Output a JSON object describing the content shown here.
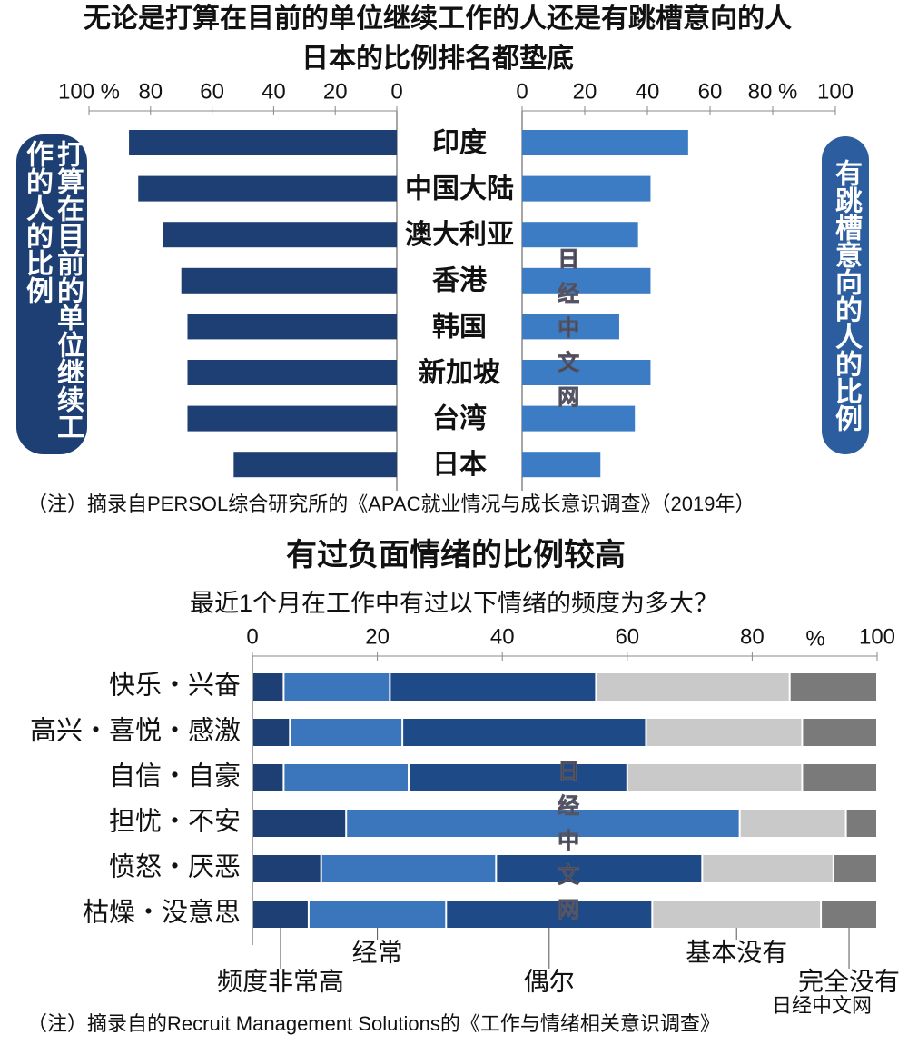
{
  "chart_data": [
    {
      "type": "butterfly",
      "title": "无论是打算在目前的单位继续工作的人还是有跳槽意向的人",
      "subtitle": "日本的比例排名都垫底",
      "categories": [
        "印度",
        "中国大陆",
        "澳大利亚",
        "香港",
        "韩国",
        "新加坡",
        "台湾",
        "日本"
      ],
      "series": [
        {
          "name": "打算在目前的单位继续工作的人的比例",
          "color": "#1e3f73",
          "values": [
            87,
            84,
            76,
            70,
            68,
            68,
            68,
            53
          ]
        },
        {
          "name": "有跳槽意向的人的比例",
          "color": "#3b7cc4",
          "values": [
            53,
            41,
            37,
            41,
            31,
            41,
            36,
            25
          ]
        }
      ],
      "xlim": [
        0,
        100
      ],
      "xticks": [
        {
          "value": 100,
          "label": "100 %"
        },
        80,
        60,
        40,
        20,
        0
      ],
      "x2ticks": [
        0,
        20,
        40,
        60,
        {
          "value": 80,
          "label": "80 %"
        },
        100
      ],
      "note": "（注）摘录自PERSOL综合研究所的《APAC就业情况与成长意识调查》（2019年）"
    },
    {
      "type": "stacked_bar",
      "title": "有过负面情绪的比例较高",
      "subtitle": "最近1个月在工作中有过以下情绪的频度为多大？",
      "unit": "%",
      "categories": [
        "快乐・兴奋",
        "高兴・喜悦・感激",
        "自信・自豪",
        "担忧・不安",
        "愤怒・厌恶",
        "枯燥・没意思"
      ],
      "series": [
        {
          "name": "频度非常高",
          "color": "#1e3f73",
          "values": [
            5,
            6,
            5,
            15,
            11,
            9
          ]
        },
        {
          "name": "经常",
          "color": "#3b76bd",
          "values": [
            17,
            18,
            20,
            63,
            28,
            22
          ]
        },
        {
          "name": "偶尔",
          "color": "#1f4a88",
          "values": [
            33,
            39,
            35,
            0,
            33,
            33
          ]
        },
        {
          "name": "基本没有",
          "color": "#c9c9c9",
          "values": [
            31,
            25,
            28,
            17,
            21,
            27
          ]
        },
        {
          "name": "完全没有",
          "color": "#7a7a7a",
          "values": [
            14,
            12,
            12,
            5,
            7,
            9
          ]
        }
      ],
      "xlim": [
        0,
        100
      ],
      "xticks": [
        0,
        20,
        40,
        60,
        80,
        100
      ],
      "note": "（注）摘录自的Recruit Management Solutions的《工作与情绪相关意识调查》"
    }
  ],
  "watermark": "日经中文网"
}
